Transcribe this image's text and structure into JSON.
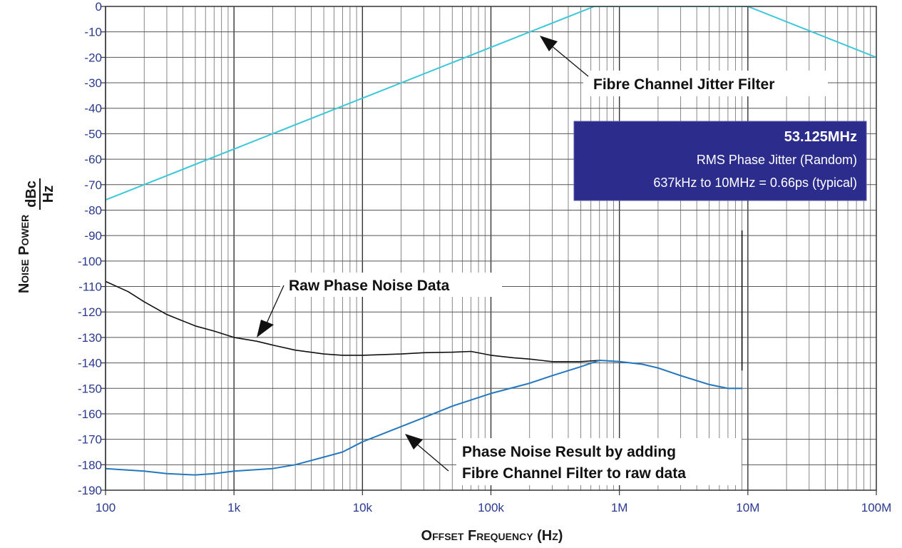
{
  "chart_data": {
    "type": "line",
    "x_scale": "log",
    "xlim": [
      100,
      100000000
    ],
    "ylim": [
      -190,
      0
    ],
    "xlabel": "Offset Frequency (Hz)",
    "ylabel": "Noise Power",
    "ylabel_unit_num": "dBc",
    "ylabel_unit_den": "Hz",
    "x_ticks": [
      {
        "value": 100,
        "label": "100"
      },
      {
        "value": 1000,
        "label": "1k"
      },
      {
        "value": 10000,
        "label": "10k"
      },
      {
        "value": 100000,
        "label": "100k"
      },
      {
        "value": 1000000,
        "label": "1M"
      },
      {
        "value": 10000000,
        "label": "10M"
      },
      {
        "value": 100000000,
        "label": "100M"
      }
    ],
    "y_ticks": [
      0,
      -10,
      -20,
      -30,
      -40,
      -50,
      -60,
      -70,
      -80,
      -90,
      -100,
      -110,
      -120,
      -130,
      -140,
      -150,
      -160,
      -170,
      -180,
      -190
    ],
    "grid": true,
    "series": [
      {
        "key": "filter",
        "color": "#3cc8d8",
        "x": [
          100,
          637000,
          10000000,
          100000000
        ],
        "y": [
          -76,
          0,
          0,
          -20
        ]
      },
      {
        "key": "raw",
        "color": "#111111",
        "x": [
          100,
          150,
          200,
          300,
          500,
          700,
          1000,
          1500,
          2000,
          3000,
          5000,
          7000,
          10000,
          20000,
          30000,
          50000,
          70000,
          100000,
          150000,
          200000,
          300000,
          500000,
          700000,
          1000000,
          1500000,
          2000000,
          3000000,
          5000000,
          7000000,
          9000000
        ],
        "y": [
          -108,
          -112,
          -116,
          -121,
          -125.5,
          -127.5,
          -130,
          -131.5,
          -133,
          -135,
          -136.5,
          -137,
          -137,
          -136.5,
          -136,
          -135.8,
          -135.5,
          -137,
          -138,
          -138.5,
          -139.5,
          -139.5,
          -139,
          -139.5,
          -140.5,
          -142,
          -145,
          -148.5,
          -150,
          -150
        ]
      },
      {
        "key": "result",
        "color": "#2478bf",
        "x": [
          100,
          200,
          300,
          500,
          700,
          1000,
          2000,
          3000,
          5000,
          7000,
          10000,
          20000,
          30000,
          50000,
          100000,
          200000,
          300000,
          500000,
          700000,
          1000000,
          1500000,
          2000000,
          3000000,
          5000000,
          7000000,
          9000000
        ],
        "y": [
          -181.5,
          -182.5,
          -183.5,
          -184,
          -183.5,
          -182.5,
          -181.5,
          -180,
          -177,
          -175,
          -171,
          -165,
          -161.5,
          -157,
          -152,
          -148,
          -145,
          -141.5,
          -139,
          -139.5,
          -140.5,
          -142,
          -145,
          -148.5,
          -150,
          -150
        ]
      },
      {
        "key": "end-marker",
        "color": "#111111",
        "x": [
          9000000,
          9000000
        ],
        "y": [
          -88,
          -143
        ]
      }
    ],
    "annotations": [
      {
        "key": "filter",
        "text": "Fibre Channel Jitter Filter"
      },
      {
        "key": "raw",
        "text": "Raw Phase Noise Data"
      },
      {
        "key": "result_line1",
        "text": "Phase Noise Result by adding"
      },
      {
        "key": "result_line2",
        "text": "Fibre Channel Filter to raw data"
      }
    ],
    "info_box": {
      "title": "53.125MHz",
      "line1": "RMS Phase Jitter  (Random)",
      "line2": "637kHz to 10MHz = 0.66ps (typical)",
      "background": "#2c2c8c"
    }
  }
}
